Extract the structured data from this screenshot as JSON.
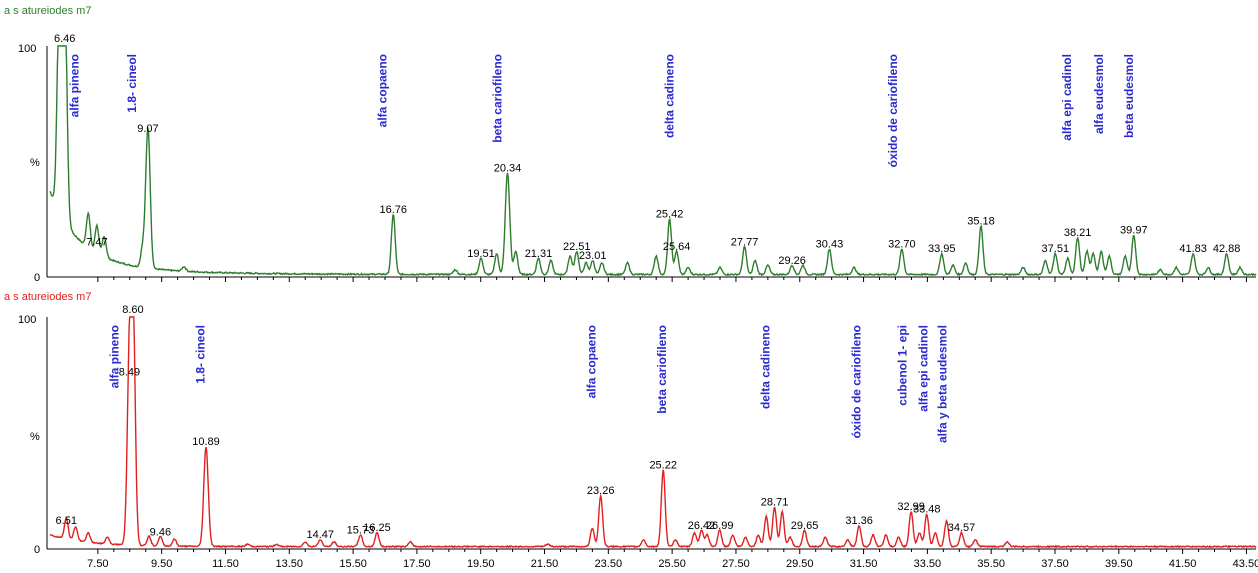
{
  "chart_data": [
    {
      "type": "line",
      "title": "a s atureiodes m7",
      "color": "#2e7d2e",
      "ylabel": "%",
      "y_ticks": [
        "0",
        "100"
      ],
      "ylim": [
        0,
        100
      ],
      "xlim": [
        6.0,
        43.8
      ],
      "peaks": [
        {
          "x": 6.46,
          "y": 100,
          "label": "6.46"
        },
        {
          "x": 7.47,
          "y": 12,
          "label": "7.47"
        },
        {
          "x": 9.07,
          "y": 61,
          "label": "9.07"
        },
        {
          "x": 16.76,
          "y": 26,
          "label": "16.76"
        },
        {
          "x": 19.51,
          "y": 7,
          "label": "19.51"
        },
        {
          "x": 20.34,
          "y": 44,
          "label": "20.34"
        },
        {
          "x": 21.31,
          "y": 7,
          "label": "21.31"
        },
        {
          "x": 22.51,
          "y": 10,
          "label": "22.51"
        },
        {
          "x": 23.01,
          "y": 6,
          "label": "23.01"
        },
        {
          "x": 25.42,
          "y": 24,
          "label": "25.42"
        },
        {
          "x": 25.64,
          "y": 10,
          "label": "25.64"
        },
        {
          "x": 27.77,
          "y": 12,
          "label": "27.77"
        },
        {
          "x": 29.26,
          "y": 4,
          "label": "29.26"
        },
        {
          "x": 30.43,
          "y": 11,
          "label": "30.43"
        },
        {
          "x": 32.7,
          "y": 11,
          "label": "32.70"
        },
        {
          "x": 33.95,
          "y": 9,
          "label": "33.95"
        },
        {
          "x": 35.18,
          "y": 21,
          "label": "35.18"
        },
        {
          "x": 37.51,
          "y": 9,
          "label": "37.51"
        },
        {
          "x": 38.21,
          "y": 16,
          "label": "38.21"
        },
        {
          "x": 39.97,
          "y": 17,
          "label": "39.97"
        },
        {
          "x": 41.83,
          "y": 9,
          "label": "41.83"
        },
        {
          "x": 42.88,
          "y": 9,
          "label": "42.88"
        }
      ],
      "minor_peaks": [
        {
          "x": 6.3,
          "y": 100
        },
        {
          "x": 7.2,
          "y": 15
        },
        {
          "x": 7.7,
          "y": 9
        },
        {
          "x": 8.9,
          "y": 8
        },
        {
          "x": 10.2,
          "y": 2
        },
        {
          "x": 18.7,
          "y": 2
        },
        {
          "x": 20.0,
          "y": 9
        },
        {
          "x": 20.6,
          "y": 10
        },
        {
          "x": 21.7,
          "y": 6
        },
        {
          "x": 22.3,
          "y": 8
        },
        {
          "x": 22.8,
          "y": 5
        },
        {
          "x": 23.3,
          "y": 5
        },
        {
          "x": 24.1,
          "y": 5
        },
        {
          "x": 25.0,
          "y": 8
        },
        {
          "x": 26.0,
          "y": 3
        },
        {
          "x": 27.0,
          "y": 3
        },
        {
          "x": 28.1,
          "y": 6
        },
        {
          "x": 28.5,
          "y": 4
        },
        {
          "x": 29.6,
          "y": 4
        },
        {
          "x": 31.2,
          "y": 3
        },
        {
          "x": 34.3,
          "y": 4
        },
        {
          "x": 34.7,
          "y": 5
        },
        {
          "x": 36.5,
          "y": 3
        },
        {
          "x": 37.2,
          "y": 6
        },
        {
          "x": 37.9,
          "y": 7
        },
        {
          "x": 38.5,
          "y": 10
        },
        {
          "x": 38.7,
          "y": 9
        },
        {
          "x": 38.95,
          "y": 10
        },
        {
          "x": 39.2,
          "y": 8
        },
        {
          "x": 39.7,
          "y": 8
        },
        {
          "x": 40.8,
          "y": 2
        },
        {
          "x": 41.3,
          "y": 3
        },
        {
          "x": 42.3,
          "y": 3
        },
        {
          "x": 43.3,
          "y": 3
        }
      ],
      "compounds": [
        {
          "x": 6.9,
          "name": "alfa pineno"
        },
        {
          "x": 8.7,
          "name": "1.8- cineol"
        },
        {
          "x": 16.55,
          "name": "alfa copaeno"
        },
        {
          "x": 20.15,
          "name": "beta cariofileno"
        },
        {
          "x": 25.55,
          "name": "delta cadineno"
        },
        {
          "x": 32.55,
          "name": "óxido de cariofileno"
        },
        {
          "x": 38.0,
          "name": "alfa epi cadinol"
        },
        {
          "x": 39.0,
          "name": "alfa eudesmol"
        },
        {
          "x": 39.95,
          "name": "beta eudesmol"
        }
      ]
    },
    {
      "type": "line",
      "title": "a s atureiodes m7",
      "color": "#e02020",
      "ylabel": "%",
      "y_ticks": [
        "0",
        "100"
      ],
      "ylim": [
        0,
        100
      ],
      "xlim": [
        6.0,
        43.8
      ],
      "x_ticks": [
        "7.50",
        "9.50",
        "11.50",
        "13.50",
        "15.50",
        "17.50",
        "19.50",
        "21.50",
        "23.50",
        "25.50",
        "27.50",
        "29.50",
        "31.50",
        "33.50",
        "35.50",
        "37.50",
        "39.50",
        "41.50",
        "43.50"
      ],
      "peaks": [
        {
          "x": 6.51,
          "y": 9,
          "label": "6.51"
        },
        {
          "x": 8.49,
          "y": 73,
          "label": "8.49"
        },
        {
          "x": 8.6,
          "y": 100,
          "label": "8.60"
        },
        {
          "x": 9.46,
          "y": 4,
          "label": "9.46"
        },
        {
          "x": 10.89,
          "y": 43,
          "label": "10.89"
        },
        {
          "x": 14.47,
          "y": 3,
          "label": "14.47"
        },
        {
          "x": 15.73,
          "y": 5,
          "label": "15.73"
        },
        {
          "x": 16.25,
          "y": 6,
          "label": "16.25"
        },
        {
          "x": 23.26,
          "y": 22,
          "label": "23.26"
        },
        {
          "x": 25.22,
          "y": 33,
          "label": "25.22"
        },
        {
          "x": 26.42,
          "y": 7,
          "label": "26.42"
        },
        {
          "x": 26.99,
          "y": 7,
          "label": "26.99"
        },
        {
          "x": 28.71,
          "y": 17,
          "label": "28.71"
        },
        {
          "x": 29.65,
          "y": 7,
          "label": "29.65"
        },
        {
          "x": 31.36,
          "y": 9,
          "label": "31.36"
        },
        {
          "x": 32.99,
          "y": 15,
          "label": "32.99"
        },
        {
          "x": 33.48,
          "y": 14,
          "label": "33.48"
        },
        {
          "x": 34.57,
          "y": 6,
          "label": "34.57"
        }
      ],
      "minor_peaks": [
        {
          "x": 6.8,
          "y": 6
        },
        {
          "x": 7.2,
          "y": 4
        },
        {
          "x": 7.8,
          "y": 3
        },
        {
          "x": 9.1,
          "y": 4
        },
        {
          "x": 9.9,
          "y": 3
        },
        {
          "x": 12.2,
          "y": 1
        },
        {
          "x": 13.1,
          "y": 1
        },
        {
          "x": 14.0,
          "y": 2
        },
        {
          "x": 14.9,
          "y": 2
        },
        {
          "x": 17.3,
          "y": 2
        },
        {
          "x": 21.6,
          "y": 1
        },
        {
          "x": 23.0,
          "y": 8
        },
        {
          "x": 24.6,
          "y": 3
        },
        {
          "x": 25.6,
          "y": 3
        },
        {
          "x": 26.2,
          "y": 6
        },
        {
          "x": 26.6,
          "y": 5
        },
        {
          "x": 27.4,
          "y": 5
        },
        {
          "x": 27.8,
          "y": 4
        },
        {
          "x": 28.2,
          "y": 5
        },
        {
          "x": 28.45,
          "y": 13
        },
        {
          "x": 28.95,
          "y": 15
        },
        {
          "x": 29.2,
          "y": 4
        },
        {
          "x": 30.3,
          "y": 4
        },
        {
          "x": 31.0,
          "y": 3
        },
        {
          "x": 31.8,
          "y": 5
        },
        {
          "x": 32.2,
          "y": 5
        },
        {
          "x": 32.6,
          "y": 4
        },
        {
          "x": 33.25,
          "y": 6
        },
        {
          "x": 33.75,
          "y": 6
        },
        {
          "x": 34.1,
          "y": 11
        },
        {
          "x": 35.0,
          "y": 3
        },
        {
          "x": 36.0,
          "y": 2
        }
      ],
      "compounds": [
        {
          "x": 8.15,
          "name": "alfa pineno"
        },
        {
          "x": 10.85,
          "name": "1.8- cineol"
        },
        {
          "x": 23.1,
          "name": "alfa copaeno"
        },
        {
          "x": 25.3,
          "name": "beta cariofileno"
        },
        {
          "x": 28.55,
          "name": "delta cadineno"
        },
        {
          "x": 31.4,
          "name": "óxido de cariofileno"
        },
        {
          "x": 32.85,
          "name": "cubenol 1- epi"
        },
        {
          "x": 33.5,
          "name": "alfa epi cadinol"
        },
        {
          "x": 34.1,
          "name": "alfa y beta eudesmol"
        }
      ]
    }
  ]
}
